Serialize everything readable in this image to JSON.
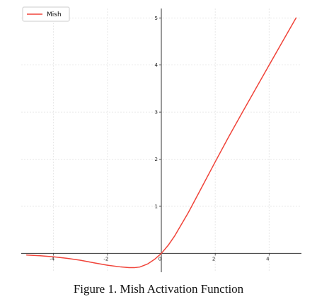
{
  "chart_data": {
    "type": "line",
    "title": "",
    "xlabel": "",
    "ylabel": "",
    "xlim": [
      -5.2,
      5.2
    ],
    "ylim": [
      -0.4,
      5.2
    ],
    "x_ticks": [
      -4,
      -2,
      0,
      2,
      4
    ],
    "y_ticks": [
      1,
      2,
      3,
      4,
      5
    ],
    "x_tick_labels": [
      "-4",
      "-2",
      "0",
      "2",
      "4"
    ],
    "y_tick_labels": [
      "1",
      "2",
      "3",
      "4",
      "5"
    ],
    "grid": true,
    "legend_position": "top-left",
    "spines": "centered at origin",
    "series": [
      {
        "name": "Mish",
        "color": "#f0443a",
        "x": [
          -5,
          -4.5,
          -4,
          -3.5,
          -3,
          -2.5,
          -2,
          -1.5,
          -1.2,
          -1,
          -0.8,
          -0.5,
          -0.25,
          0,
          0.25,
          0.5,
          1,
          1.5,
          2,
          2.5,
          3,
          3.5,
          4,
          4.5,
          5
        ],
        "y": [
          -0.034,
          -0.05,
          -0.073,
          -0.104,
          -0.146,
          -0.2,
          -0.252,
          -0.288,
          -0.302,
          -0.303,
          -0.29,
          -0.222,
          -0.126,
          0,
          0.168,
          0.375,
          0.865,
          1.403,
          1.944,
          2.475,
          2.987,
          3.493,
          3.997,
          4.5,
          5.0
        ]
      }
    ]
  },
  "caption": {
    "text": "Figure 1.  Mish Activation Function"
  }
}
